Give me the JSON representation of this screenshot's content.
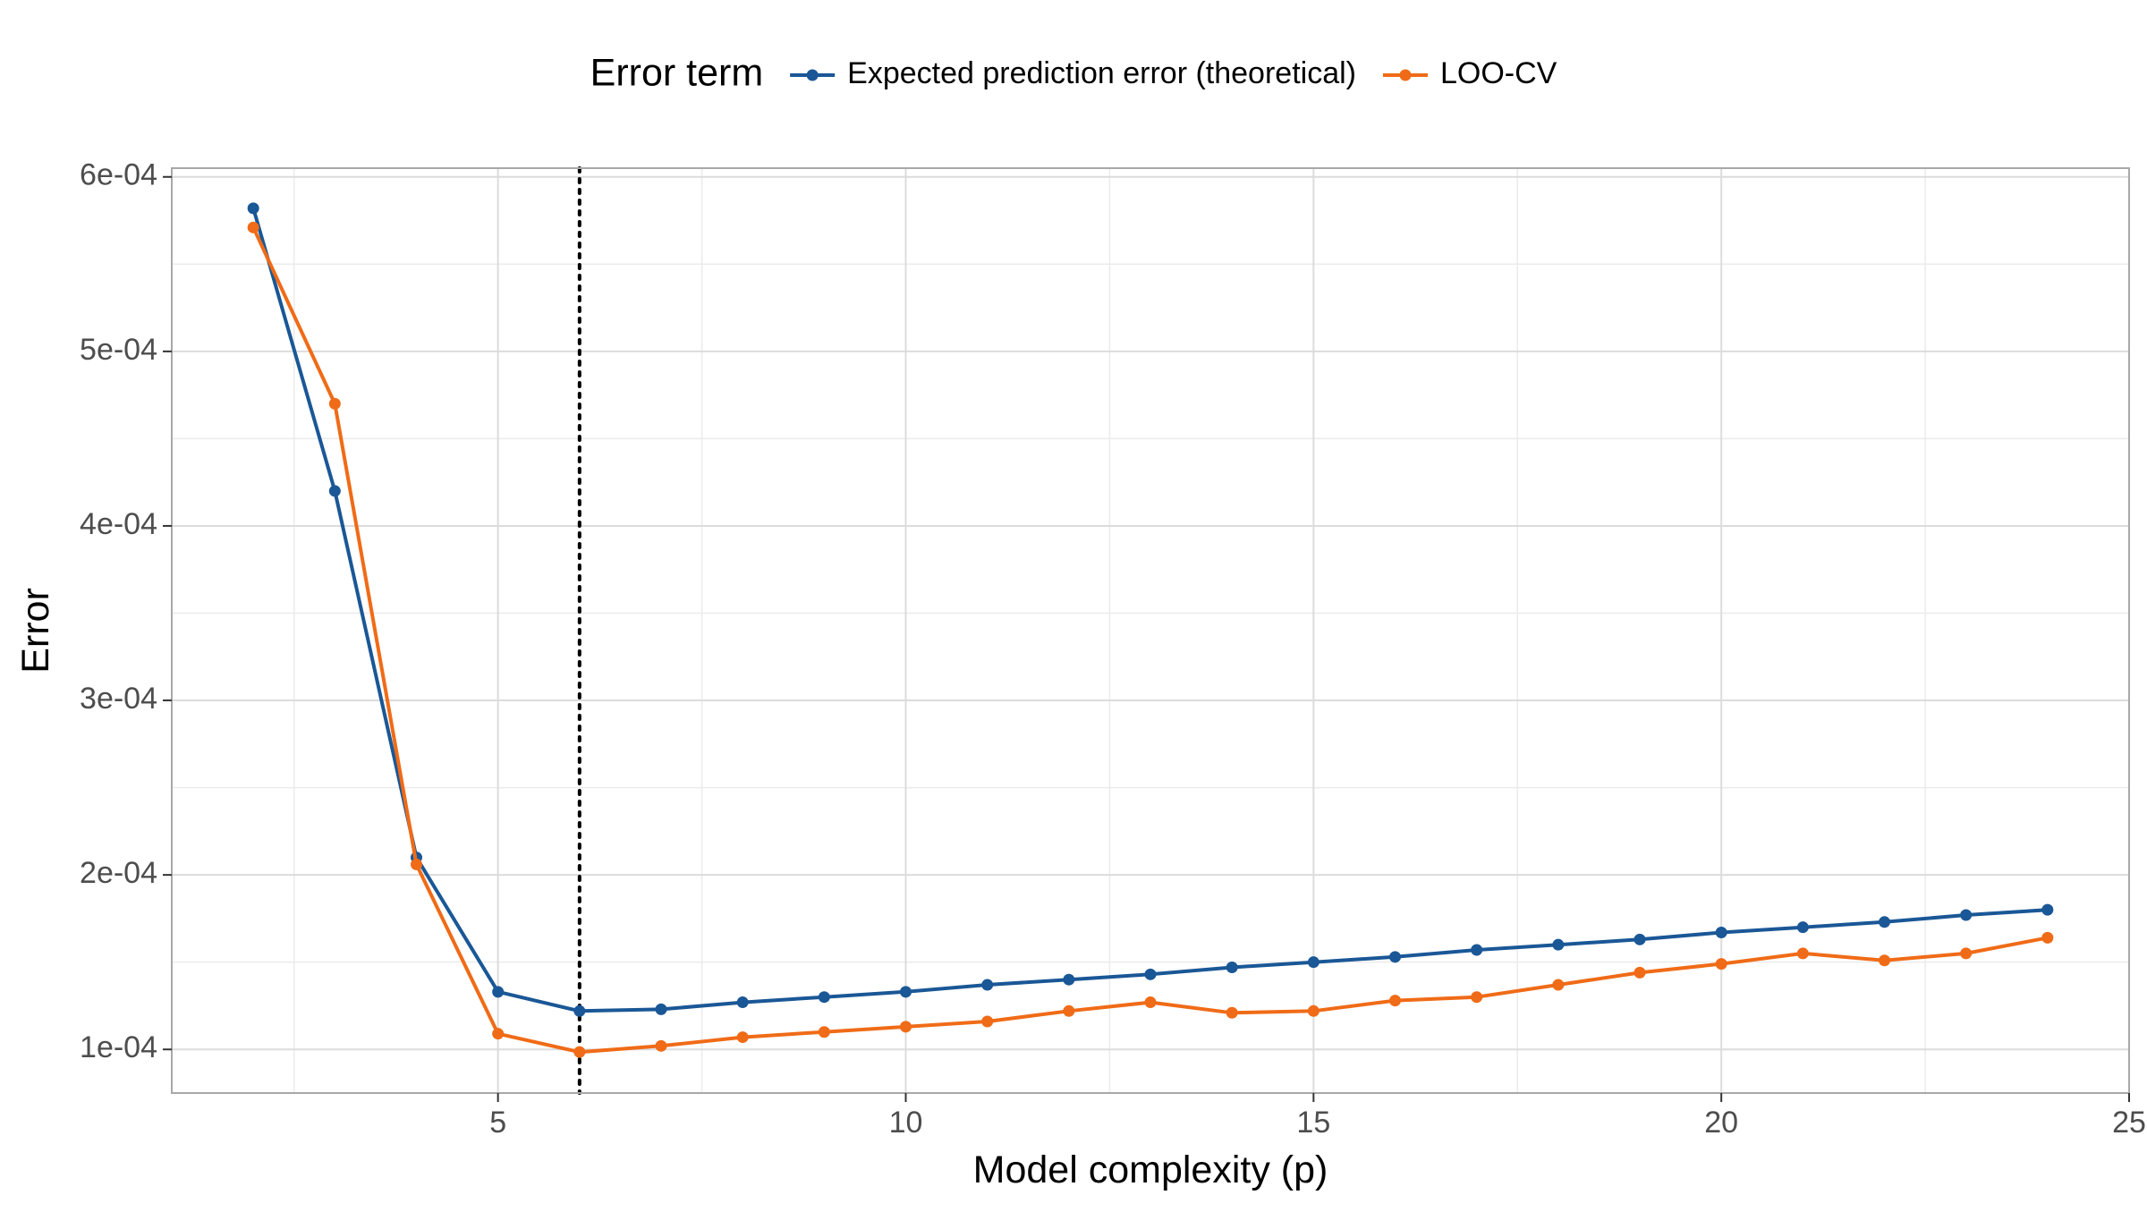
{
  "chart_data": {
    "type": "line",
    "title": "",
    "xlabel": "Model complexity (p)",
    "ylabel": "Error",
    "xlim": [
      1.0,
      25.0
    ],
    "ylim": [
      7.5e-05,
      0.000605
    ],
    "x_ticks": [
      5,
      10,
      15,
      20,
      25
    ],
    "y_ticks": [
      0.0001,
      0.0002,
      0.0003,
      0.0004,
      0.0005,
      0.0006
    ],
    "x_tick_labels": [
      "5",
      "10",
      "15",
      "20",
      "25"
    ],
    "y_tick_labels": [
      "1e-04",
      "2e-04",
      "3e-04",
      "4e-04",
      "5e-04",
      "6e-04"
    ],
    "grid": true,
    "legend": {
      "title": "Error term",
      "position": "top"
    },
    "vline": {
      "x": 6,
      "style": "dotted",
      "color": "#000000"
    },
    "x": [
      2,
      3,
      4,
      5,
      6,
      7,
      8,
      9,
      10,
      11,
      12,
      13,
      14,
      15,
      16,
      17,
      18,
      19,
      20,
      21,
      22,
      23,
      24
    ],
    "series": [
      {
        "name": "Expected prediction error (theoretical)",
        "color": "#1a5796",
        "values": [
          0.000582,
          0.00042,
          0.00021,
          0.000133,
          0.000122,
          0.000123,
          0.000127,
          0.00013,
          0.000133,
          0.000137,
          0.00014,
          0.000143,
          0.000147,
          0.00015,
          0.000153,
          0.000157,
          0.00016,
          0.000163,
          0.000167,
          0.00017,
          0.000173,
          0.000177,
          0.00018
        ]
      },
      {
        "name": "LOO-CV",
        "color": "#f06b17",
        "values": [
          0.000571,
          0.00047,
          0.000206,
          0.000109,
          9.85e-05,
          0.000102,
          0.000107,
          0.00011,
          0.000113,
          0.000116,
          0.000122,
          0.000127,
          0.000121,
          0.000122,
          0.000128,
          0.00013,
          0.000137,
          0.000144,
          0.000149,
          0.000155,
          0.000151,
          0.000155,
          0.000164
        ]
      }
    ]
  }
}
